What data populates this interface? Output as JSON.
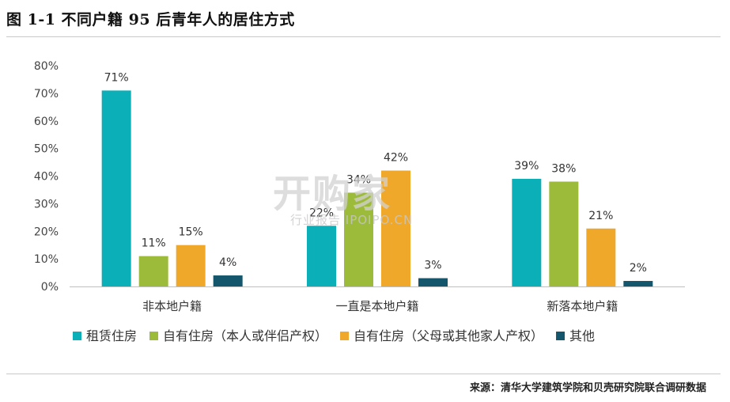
{
  "figure": {
    "title": "图 1-1  不同户籍 95 后青年人的居住方式",
    "source": "来源：清华大学建筑学院和贝壳研究院联合调研数据"
  },
  "watermark": {
    "logo_text": "开购家",
    "tagline": "行业报告 IPOIPO.CN"
  },
  "chart_data": {
    "type": "bar",
    "title": "",
    "xlabel": "",
    "ylabel": "",
    "ylim": [
      0,
      80
    ],
    "yticks": [
      "0%",
      "10%",
      "20%",
      "30%",
      "40%",
      "50%",
      "60%",
      "70%",
      "80%"
    ],
    "grid": false,
    "legend_position": "bottom",
    "categories": [
      "非本地户籍",
      "一直是本地户籍",
      "新落本地户籍"
    ],
    "series": [
      {
        "name": "租赁住房",
        "color": "#0BAFB8",
        "values": [
          71,
          22,
          39
        ],
        "labels": [
          "71%",
          "22%",
          "39%"
        ]
      },
      {
        "name": "自有住房（本人或伴侣产权）",
        "color": "#9DBB3A",
        "values": [
          11,
          34,
          38
        ],
        "labels": [
          "11%",
          "34%",
          "38%"
        ]
      },
      {
        "name": "自有住房（父母或其他家人产权）",
        "color": "#F0A82A",
        "values": [
          15,
          42,
          21
        ],
        "labels": [
          "15%",
          "42%",
          "21%"
        ]
      },
      {
        "name": "其他",
        "color": "#14566B",
        "values": [
          4,
          3,
          2
        ],
        "labels": [
          "4%",
          "3%",
          "2%"
        ]
      }
    ]
  }
}
